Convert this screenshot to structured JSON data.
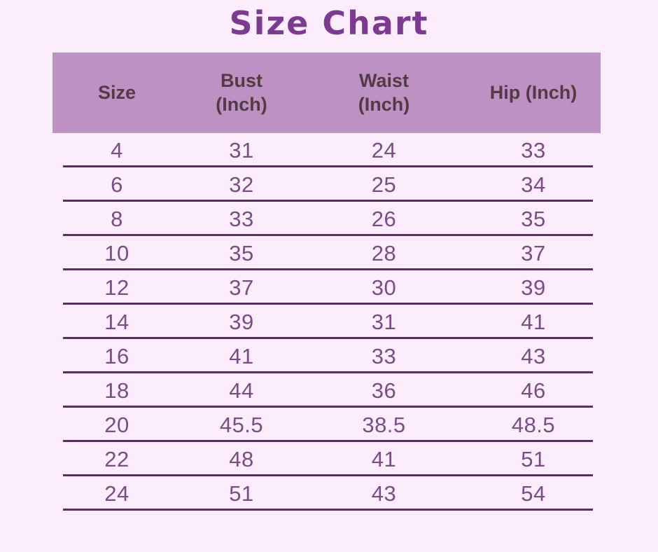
{
  "title": "Size Chart",
  "colors": {
    "background": "#fbedfb",
    "header_background": "#bd91c3",
    "header_text": "#533b43",
    "title_text": "#7c3a91",
    "data_text": "#7b4c87",
    "divider_line": "#5b2d63"
  },
  "chart_data": {
    "type": "table",
    "title": "Size Chart",
    "columns": [
      "Size",
      "Bust (Inch)",
      "Waist (Inch)",
      "Hip (Inch)"
    ],
    "header_lines": [
      [
        "Size",
        ""
      ],
      [
        "Bust",
        "(Inch)"
      ],
      [
        "Waist",
        "(Inch)"
      ],
      [
        "Hip (Inch)",
        ""
      ]
    ],
    "rows": [
      [
        "4",
        "31",
        "24",
        "33"
      ],
      [
        "6",
        "32",
        "25",
        "34"
      ],
      [
        "8",
        "33",
        "26",
        "35"
      ],
      [
        "10",
        "35",
        "28",
        "37"
      ],
      [
        "12",
        "37",
        "30",
        "39"
      ],
      [
        "14",
        "39",
        "31",
        "41"
      ],
      [
        "16",
        "41",
        "33",
        "43"
      ],
      [
        "18",
        "44",
        "36",
        "46"
      ],
      [
        "20",
        "45.5",
        "38.5",
        "48.5"
      ],
      [
        "22",
        "48",
        "41",
        "51"
      ],
      [
        "24",
        "51",
        "43",
        "54"
      ]
    ]
  }
}
